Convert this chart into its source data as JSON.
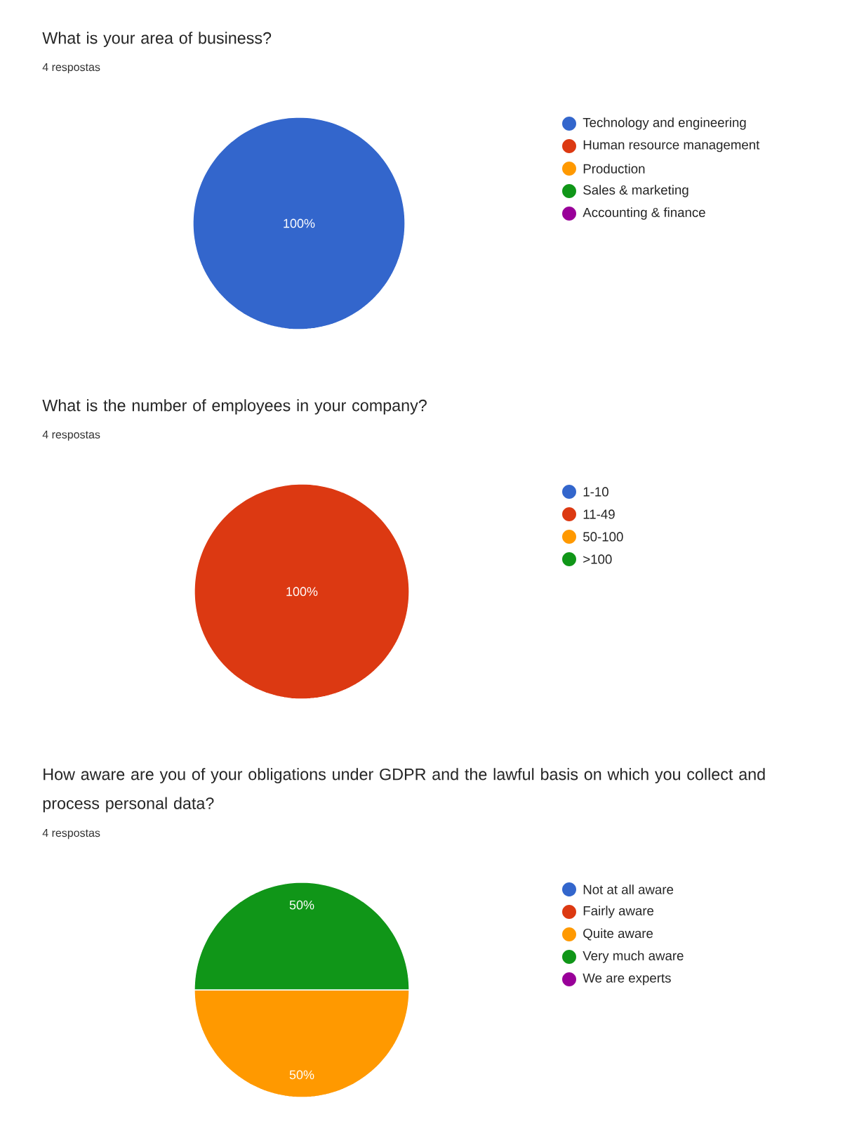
{
  "chart_data": [
    {
      "type": "pie",
      "title": "What is your area of business?",
      "subtitle": "4 respostas",
      "categories": [
        "Technology and engineering",
        "Human resource management",
        "Production",
        "Sales & marketing",
        "Accounting & finance"
      ],
      "values": [
        100,
        0,
        0,
        0,
        0
      ],
      "colors": [
        "#3366cc",
        "#dc3912",
        "#ff9900",
        "#109618",
        "#990099"
      ],
      "value_labels": [
        "100%",
        null,
        null,
        null,
        null
      ],
      "legend": "right"
    },
    {
      "type": "pie",
      "title": "What is the number of employees in your company?",
      "subtitle": "4 respostas",
      "categories": [
        "1-10",
        "11-49",
        "50-100",
        ">100"
      ],
      "values": [
        0,
        100,
        0,
        0
      ],
      "colors": [
        "#3366cc",
        "#dc3912",
        "#ff9900",
        "#109618"
      ],
      "value_labels": [
        null,
        "100%",
        null,
        null
      ],
      "legend": "right"
    },
    {
      "type": "pie",
      "title": "How aware are you of your obligations under GDPR and the lawful basis on which you collect and process personal data?",
      "subtitle": "4 respostas",
      "categories": [
        "Not at all aware",
        "Fairly aware",
        "Quite aware",
        "Very much aware",
        "We are experts"
      ],
      "values": [
        0,
        0,
        50,
        50,
        0
      ],
      "colors": [
        "#3366cc",
        "#dc3912",
        "#ff9900",
        "#109618",
        "#990099"
      ],
      "value_labels": [
        null,
        null,
        "50%",
        "50%",
        null
      ],
      "legend": "right"
    }
  ]
}
